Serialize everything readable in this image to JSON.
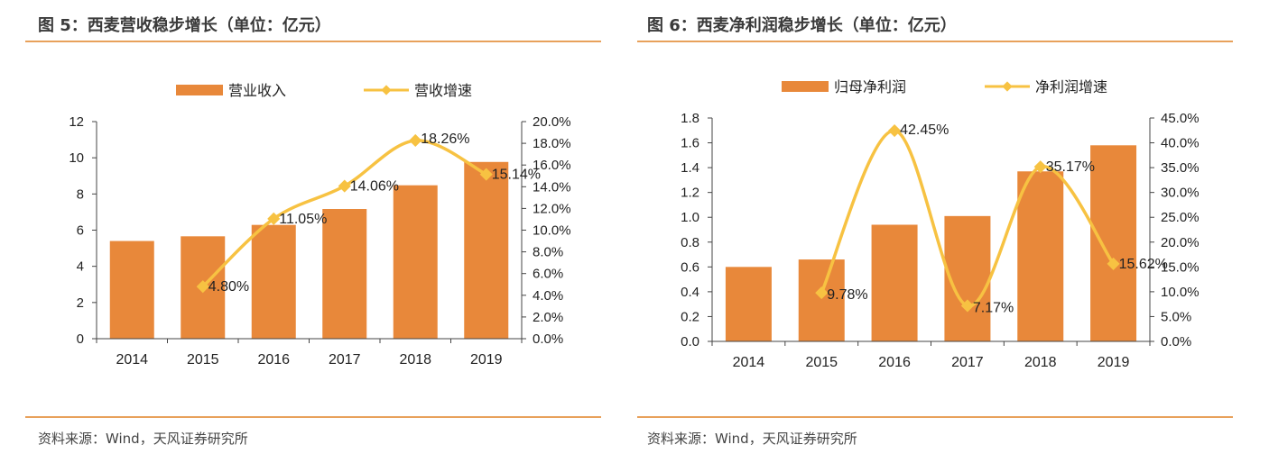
{
  "figures": [
    {
      "title": "图 5：西麦营收稳步增长（单位：亿元）",
      "source": "资料来源：Wind，天风证券研究所"
    },
    {
      "title": "图 6：西麦净利润稳步增长（单位：亿元）",
      "source": "资料来源：Wind，天风证券研究所"
    }
  ],
  "colors": {
    "bar": "#e8883a",
    "line": "#f7c242",
    "rule": "#e8a15b",
    "axis": "#444444"
  },
  "chart_data": [
    {
      "type": "bar",
      "categories": [
        "2014",
        "2015",
        "2016",
        "2017",
        "2018",
        "2019"
      ],
      "series": [
        {
          "name": "营业收入",
          "kind": "bar",
          "axis": "left",
          "values": [
            5.4,
            5.66,
            6.29,
            7.17,
            8.48,
            9.77
          ]
        },
        {
          "name": "营收增速",
          "kind": "line",
          "axis": "right",
          "values": [
            null,
            4.8,
            11.05,
            14.06,
            18.26,
            15.14
          ],
          "labels": [
            "",
            "4.80%",
            "11.05%",
            "14.06%",
            "18.26%",
            "15.14%"
          ]
        }
      ],
      "ylim_left": [
        0,
        12
      ],
      "yticks_left": [
        "0",
        "2",
        "4",
        "6",
        "8",
        "10",
        "12"
      ],
      "ylim_right": [
        0,
        20
      ],
      "yticks_right": [
        "0.0%",
        "2.0%",
        "4.0%",
        "6.0%",
        "8.0%",
        "10.0%",
        "12.0%",
        "14.0%",
        "16.0%",
        "18.0%",
        "20.0%"
      ],
      "legend": "top-center",
      "grid": false
    },
    {
      "type": "bar",
      "categories": [
        "2014",
        "2015",
        "2016",
        "2017",
        "2018",
        "2019"
      ],
      "series": [
        {
          "name": "归母净利润",
          "kind": "bar",
          "axis": "left",
          "values": [
            0.6,
            0.66,
            0.94,
            1.01,
            1.37,
            1.58
          ]
        },
        {
          "name": "净利润增速",
          "kind": "line",
          "axis": "right",
          "values": [
            null,
            9.78,
            42.45,
            7.17,
            35.17,
            15.62
          ],
          "labels": [
            "",
            "9.78%",
            "42.45%",
            "7.17%",
            "35.17%",
            "15.62%"
          ]
        }
      ],
      "ylim_left": [
        0,
        1.8
      ],
      "yticks_left": [
        "0.0",
        "0.2",
        "0.4",
        "0.6",
        "0.8",
        "1.0",
        "1.2",
        "1.4",
        "1.6",
        "1.8"
      ],
      "ylim_right": [
        0,
        45
      ],
      "yticks_right": [
        "0.0%",
        "5.0%",
        "10.0%",
        "15.0%",
        "20.0%",
        "25.0%",
        "30.0%",
        "35.0%",
        "40.0%",
        "45.0%"
      ],
      "legend": "top-center",
      "grid": false
    }
  ]
}
